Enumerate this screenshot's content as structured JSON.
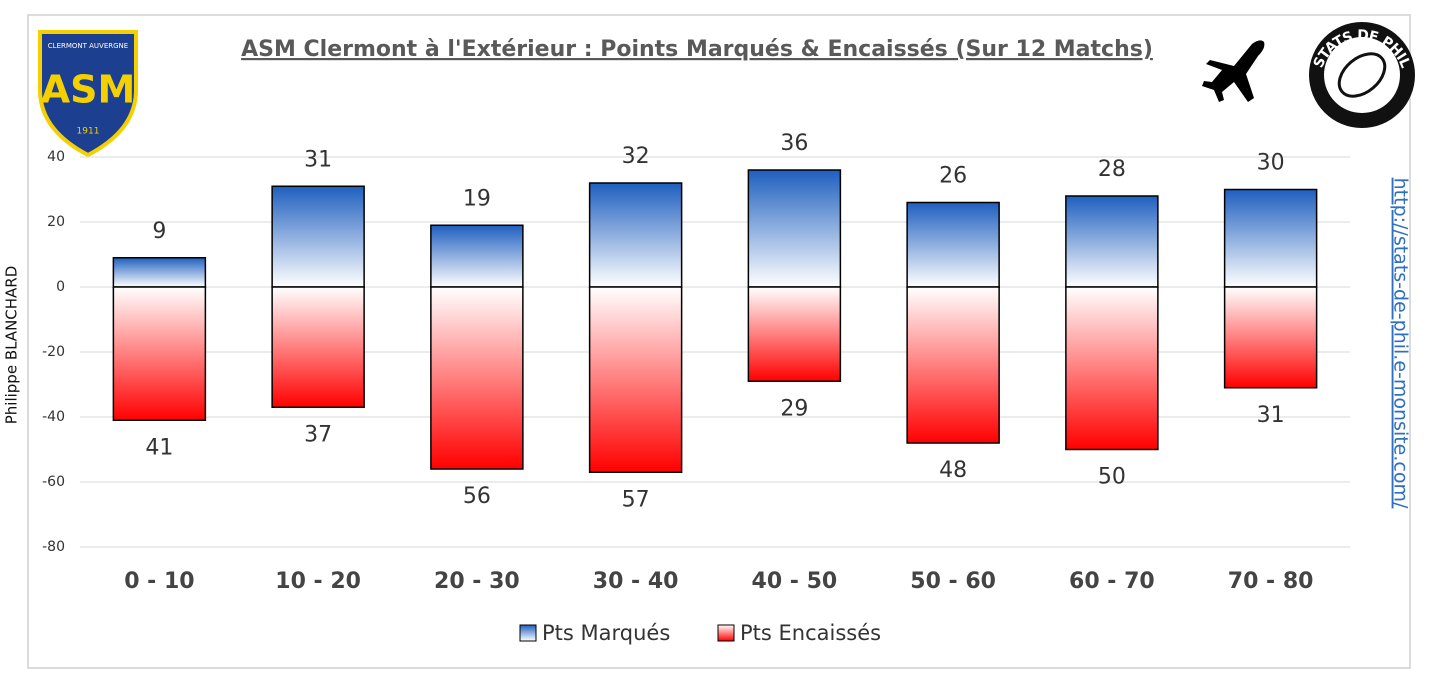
{
  "chart_data": {
    "type": "bar",
    "title": "ASM Clermont à l'Extérieur : Points Marqués & Encaissés (Sur 12 Matchs)",
    "categories": [
      "0 - 10",
      "10 - 20",
      "20 - 30",
      "30 - 40",
      "40 - 50",
      "50 - 60",
      "60 - 70",
      "70 - 80"
    ],
    "series": [
      {
        "name": "Pts Marqués",
        "color": "#1f5fbf",
        "values": [
          9,
          31,
          19,
          32,
          36,
          26,
          28,
          30
        ]
      },
      {
        "name": "Pts Encaissés",
        "color": "#ff0000",
        "values": [
          -41,
          -37,
          -56,
          -57,
          -29,
          -48,
          -50,
          -31
        ],
        "value_labels": [
          "41",
          "37",
          "56",
          "57",
          "29",
          "48",
          "50",
          "31"
        ]
      }
    ],
    "ylim": [
      -80,
      40
    ],
    "yticks": [
      40,
      20,
      0,
      -20,
      -40,
      -60,
      -80
    ],
    "grid": true,
    "legend": "bottom",
    "side_label": "Philippe BLANCHARD",
    "url": "http://stats-de-phil.e-monsite.com/",
    "logos": {
      "club_top": "CLERMONT AUVERGNE",
      "club_mark": "ASM",
      "club_year": "1911",
      "stats": "STATS DE PHIL"
    }
  }
}
